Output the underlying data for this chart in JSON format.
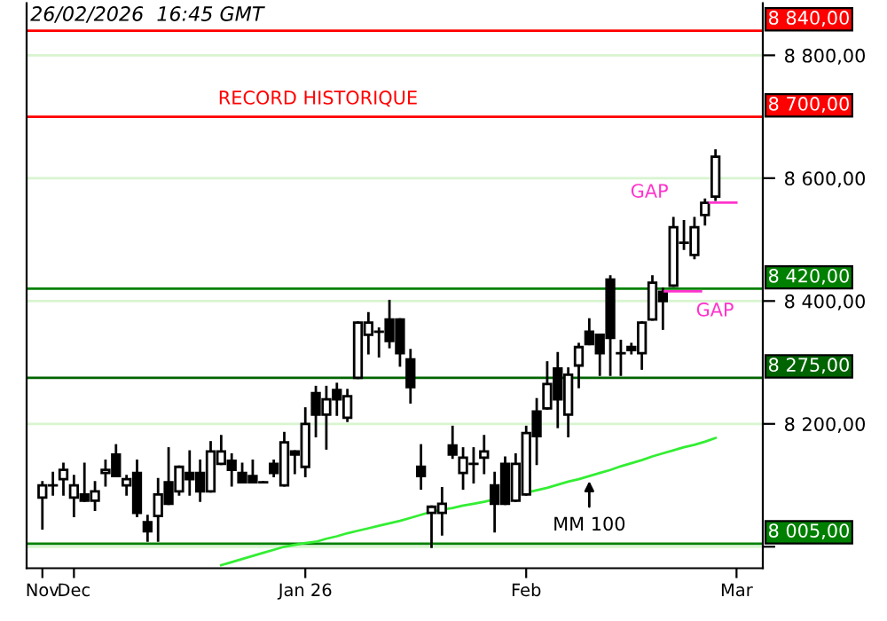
{
  "chart_data": {
    "type": "candlestick",
    "title": "26/02/2026  16:45 GMT",
    "categories": [
      "Nov",
      null,
      null,
      "Dec",
      null,
      null,
      null,
      null,
      null,
      null,
      null,
      null,
      null,
      null,
      null,
      null,
      null,
      null,
      null,
      null,
      null,
      null,
      null,
      null,
      null,
      "Jan 26",
      null,
      null,
      null,
      null,
      null,
      null,
      null,
      null,
      null,
      null,
      null,
      null,
      null,
      null,
      null,
      null,
      null,
      null,
      null,
      null,
      "Feb",
      null,
      null,
      null,
      null,
      null,
      null,
      null,
      null,
      null,
      null,
      null,
      null,
      null,
      null,
      null,
      null,
      null,
      null,
      null,
      "Mar"
    ],
    "ohlc": [
      [
        8080,
        8105,
        8030,
        8100
      ],
      [
        8100,
        8120,
        8085,
        8100
      ],
      [
        8110,
        8135,
        8085,
        8125
      ],
      [
        8080,
        8115,
        8050,
        8100
      ],
      [
        8085,
        8135,
        8075,
        8075
      ],
      [
        8075,
        8105,
        8060,
        8090
      ],
      [
        8120,
        8140,
        8100,
        8125
      ],
      [
        8150,
        8165,
        8115,
        8115
      ],
      [
        8100,
        8115,
        8085,
        8110
      ],
      [
        8120,
        8140,
        8050,
        8055
      ],
      [
        8040,
        8050,
        8010,
        8025
      ],
      [
        8050,
        8110,
        8010,
        8085
      ],
      [
        8105,
        8160,
        8070,
        8070
      ],
      [
        8090,
        8130,
        8085,
        8130
      ],
      [
        8120,
        8155,
        8085,
        8110
      ],
      [
        8120,
        8140,
        8075,
        8090
      ],
      [
        8090,
        8170,
        8090,
        8155
      ],
      [
        8135,
        8180,
        8135,
        8155
      ],
      [
        8140,
        8150,
        8100,
        8125
      ],
      [
        8120,
        8135,
        8105,
        8105
      ],
      [
        8115,
        8140,
        8105,
        8105
      ],
      [
        8105,
        8105,
        8105,
        8105
      ],
      [
        8135,
        8140,
        8115,
        8120
      ],
      [
        8100,
        8185,
        8100,
        8170
      ],
      [
        8155,
        8155,
        8120,
        8150
      ],
      [
        8130,
        8225,
        8115,
        8200
      ],
      [
        8250,
        8260,
        8180,
        8215
      ],
      [
        8215,
        8260,
        8160,
        8240
      ],
      [
        8255,
        8265,
        8215,
        8240
      ],
      [
        8210,
        8255,
        8205,
        8245
      ],
      [
        8275,
        8365,
        8275,
        8365
      ],
      [
        8345,
        8380,
        8315,
        8365
      ],
      [
        8350,
        8355,
        8310,
        8350
      ],
      [
        8370,
        8400,
        8325,
        8335
      ],
      [
        8370,
        8370,
        8295,
        8315
      ],
      [
        8305,
        8320,
        8235,
        8260
      ],
      [
        8130,
        8165,
        8095,
        8115
      ],
      [
        8055,
        8065,
        8000,
        8065
      ],
      [
        8055,
        8095,
        8020,
        8070
      ],
      [
        8165,
        8195,
        8145,
        8150
      ],
      [
        8120,
        8160,
        8095,
        8145
      ],
      [
        8135,
        8160,
        8105,
        8135
      ],
      [
        8145,
        8180,
        8120,
        8155
      ],
      [
        8100,
        8120,
        8025,
        8070
      ],
      [
        8135,
        8145,
        8070,
        8070
      ],
      [
        8075,
        8150,
        8075,
        8135
      ],
      [
        8085,
        8195,
        8085,
        8185
      ],
      [
        8220,
        8240,
        8135,
        8180
      ],
      [
        8225,
        8300,
        8225,
        8265
      ],
      [
        8290,
        8315,
        8195,
        8240
      ],
      [
        8215,
        8290,
        8180,
        8280
      ],
      [
        8295,
        8330,
        8260,
        8325
      ],
      [
        8350,
        8370,
        8330,
        8330
      ],
      [
        8345,
        8345,
        8280,
        8315
      ],
      [
        8435,
        8440,
        8280,
        8340
      ],
      [
        8315,
        8335,
        8280,
        8315
      ],
      [
        8325,
        8330,
        8315,
        8320
      ],
      [
        8315,
        8365,
        8290,
        8365
      ],
      [
        8370,
        8440,
        8370,
        8430
      ],
      [
        8415,
        8420,
        8355,
        8400
      ],
      [
        8425,
        8535,
        8425,
        8520
      ],
      [
        8495,
        8530,
        8485,
        8495
      ],
      [
        8475,
        8535,
        8470,
        8520
      ],
      [
        8540,
        8565,
        8525,
        8560
      ],
      [
        8570,
        8645,
        8565,
        8635
      ],
      null,
      null
    ],
    "series": [
      {
        "type": "line",
        "name": "MM 100",
        "color": "#33ee33",
        "values": [
          null,
          null,
          null,
          null,
          null,
          null,
          null,
          null,
          null,
          null,
          null,
          null,
          null,
          null,
          null,
          null,
          null,
          7970,
          7975,
          7980,
          7985,
          7990,
          7995,
          8000,
          8003,
          8006,
          8008,
          8013,
          8017,
          8022,
          8026,
          8030,
          8034,
          8038,
          8042,
          8047,
          8052,
          8057,
          8060,
          8063,
          8067,
          8070,
          8073,
          8077,
          null,
          null,
          8088,
          8092,
          8096,
          8101,
          8106,
          8110,
          8115,
          8120,
          8125,
          8131,
          8136,
          8141,
          8147,
          8152,
          8157,
          8162,
          8166,
          8171,
          8177,
          null,
          null
        ]
      }
    ],
    "ylim": [
      7965,
      8885
    ],
    "yticks": [
      {
        "value": 8000,
        "label": null
      },
      {
        "value": 8200,
        "label": "8 200,00"
      },
      {
        "value": 8400,
        "label": "8 400,00"
      },
      {
        "value": 8600,
        "label": "8 600,00"
      },
      {
        "value": 8800,
        "label": "8 800,00"
      }
    ],
    "grid": "y",
    "ref_lines": [
      {
        "axis": "y",
        "value": 8840,
        "label": "8 840,00",
        "color": "#ff0000"
      },
      {
        "axis": "y",
        "value": 8700,
        "label": "8 700,00",
        "color": "#ff0000"
      },
      {
        "axis": "y",
        "value": 8420,
        "label": "8 420,00",
        "color": "#008000"
      },
      {
        "axis": "y",
        "value": 8275,
        "label": "8 275,00",
        "color": "#006400"
      },
      {
        "axis": "y",
        "value": 8005,
        "label": "8 005,00",
        "color": "#008000"
      }
    ],
    "annotations": [
      "RECORD HISTORIQUE",
      "GAP",
      "GAP"
    ]
  }
}
